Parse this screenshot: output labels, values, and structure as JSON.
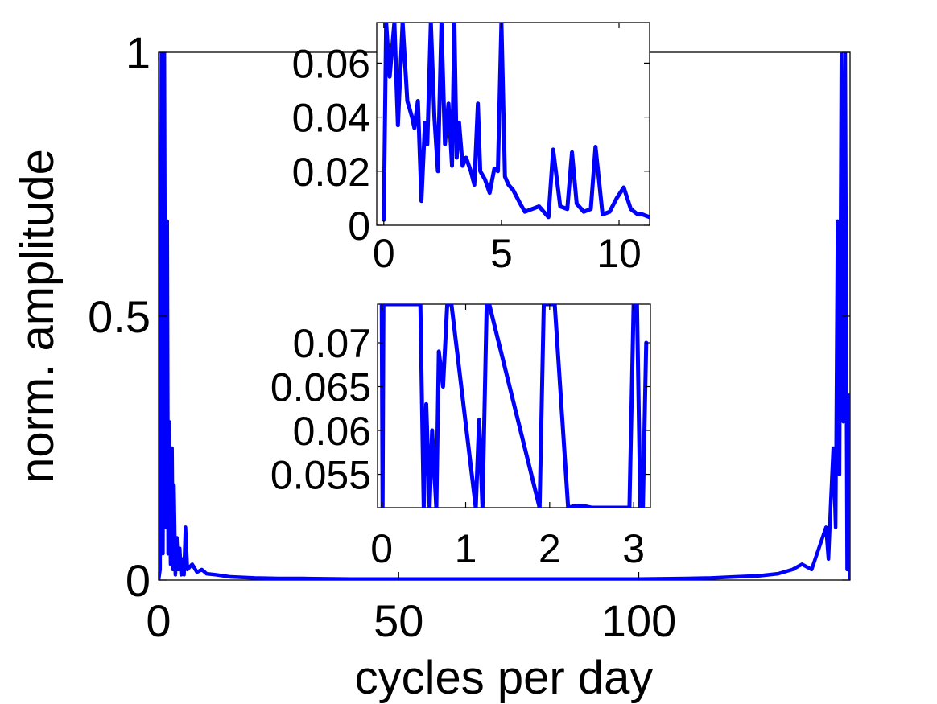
{
  "chart_data": [
    {
      "id": "main",
      "type": "line",
      "xlabel": "cycles per day",
      "ylabel": "norm. amplitude",
      "xlim": [
        0,
        144
      ],
      "ylim": [
        0,
        1
      ],
      "xticks": [
        0,
        50,
        100
      ],
      "yticks": [
        0,
        0.5,
        1
      ],
      "xtick_labels": [
        "0",
        "50",
        "100"
      ],
      "ytick_labels": [
        "0",
        "0.5",
        "1"
      ],
      "grid": false,
      "series_color": "#0000ff",
      "series": [
        {
          "x": [
            0,
            0.3,
            0.6,
            0.9,
            1.2,
            1.5,
            1.8,
            2.0,
            2.2,
            2.5,
            2.8,
            3.0,
            3.2,
            3.5,
            3.8,
            4.1,
            4.4,
            4.7,
            5.0,
            5.3,
            5.6,
            6,
            7,
            8,
            9,
            10,
            12,
            15,
            20,
            25,
            30,
            40,
            50,
            60,
            70,
            80,
            90,
            100,
            110,
            115,
            120,
            125,
            129,
            132,
            134,
            136,
            137.5,
            139,
            139.5,
            140,
            140.5,
            141,
            141.4,
            141.8,
            142.2,
            142.6,
            143,
            143.4,
            143.8,
            144
          ],
          "y": [
            0,
            0.02,
            1.0,
            0.05,
            1.0,
            0.1,
            0.68,
            0.05,
            0.3,
            0.03,
            0.25,
            0.02,
            0.18,
            0.01,
            0.08,
            0.02,
            0.06,
            0.01,
            0.04,
            0.01,
            0.1,
            0.02,
            0.03,
            0.015,
            0.02,
            0.012,
            0.01,
            0.006,
            0.004,
            0.003,
            0.003,
            0.002,
            0.002,
            0.002,
            0.002,
            0.002,
            0.002,
            0.002,
            0.003,
            0.004,
            0.006,
            0.008,
            0.012,
            0.02,
            0.03,
            0.02,
            0.06,
            0.1,
            0.04,
            0.15,
            0.25,
            0.1,
            0.68,
            0.2,
            1.0,
            0.3,
            1.0,
            0.02,
            0.35,
            0
          ]
        }
      ]
    },
    {
      "id": "inset-top",
      "type": "line",
      "xlim": [
        -0.3,
        11.3
      ],
      "ylim": [
        0,
        0.075
      ],
      "xticks": [
        0,
        5,
        10
      ],
      "yticks": [
        0,
        0.02,
        0.04,
        0.06
      ],
      "xtick_labels": [
        "0",
        "5",
        "10"
      ],
      "ytick_labels": [
        "0",
        "0.02",
        "0.04",
        "0.06"
      ],
      "grid": false,
      "series_color": "#0000ff",
      "series": [
        {
          "x": [
            0,
            0.1,
            0.25,
            0.45,
            0.6,
            0.8,
            1.0,
            1.2,
            1.3,
            1.45,
            1.6,
            1.75,
            1.85,
            2.0,
            2.15,
            2.3,
            2.45,
            2.6,
            2.75,
            2.9,
            3.0,
            3.1,
            3.2,
            3.35,
            3.5,
            3.7,
            3.85,
            4.0,
            4.1,
            4.3,
            4.5,
            4.7,
            4.85,
            5.0,
            5.15,
            5.3,
            5.5,
            5.8,
            6.0,
            6.3,
            6.6,
            7.0,
            7.2,
            7.5,
            7.8,
            8.0,
            8.2,
            8.5,
            8.8,
            9.0,
            9.3,
            9.6,
            9.9,
            10.2,
            10.5,
            10.8,
            11.0,
            11.3
          ],
          "y": [
            0.002,
            0.075,
            0.055,
            0.075,
            0.037,
            0.075,
            0.046,
            0.04,
            0.036,
            0.046,
            0.009,
            0.038,
            0.03,
            0.075,
            0.04,
            0.02,
            0.075,
            0.03,
            0.045,
            0.022,
            0.075,
            0.025,
            0.038,
            0.022,
            0.025,
            0.02,
            0.015,
            0.045,
            0.02,
            0.017,
            0.012,
            0.021,
            0.02,
            0.075,
            0.018,
            0.015,
            0.013,
            0.008,
            0.005,
            0.006,
            0.007,
            0.003,
            0.028,
            0.007,
            0.006,
            0.027,
            0.008,
            0.005,
            0.006,
            0.029,
            0.004,
            0.005,
            0.01,
            0.014,
            0.006,
            0.004,
            0.004,
            0.003
          ]
        }
      ]
    },
    {
      "id": "inset-bottom",
      "type": "line",
      "xlim": [
        -0.05,
        3.2
      ],
      "ylim": [
        0.0512,
        0.0744
      ],
      "xticks": [
        0,
        1,
        2,
        3
      ],
      "yticks": [
        0.055,
        0.06,
        0.065,
        0.07
      ],
      "xtick_labels": [
        "0",
        "1",
        "2",
        "3"
      ],
      "ytick_labels": [
        "0.055",
        "0.06",
        "0.065",
        "0.07"
      ],
      "grid": false,
      "series_color": "#0000ff",
      "series": [
        {
          "x": [
            0,
            0.01,
            0.02,
            0.46,
            0.5,
            0.53,
            0.57,
            0.6,
            0.65,
            0.68,
            0.73,
            0.78,
            0.8,
            0.83,
            1.12,
            1.16,
            1.2,
            1.25,
            1.28,
            1.88,
            1.93,
            2.0,
            2.06,
            2.22,
            2.3,
            2.4,
            2.5,
            2.95,
            3.0,
            3.04,
            3.08,
            3.11,
            3.15
          ],
          "y": [
            0.0744,
            0.0512,
            0.0744,
            0.0744,
            0.0512,
            0.063,
            0.0512,
            0.06,
            0.0512,
            0.069,
            0.065,
            0.0744,
            0.0744,
            0.0744,
            0.0512,
            0.0612,
            0.0512,
            0.0744,
            0.0744,
            0.0512,
            0.0744,
            0.0744,
            0.0744,
            0.0512,
            0.0514,
            0.0514,
            0.0512,
            0.0512,
            0.0744,
            0.0744,
            0.0512,
            0.0512,
            0.07
          ]
        }
      ]
    }
  ]
}
